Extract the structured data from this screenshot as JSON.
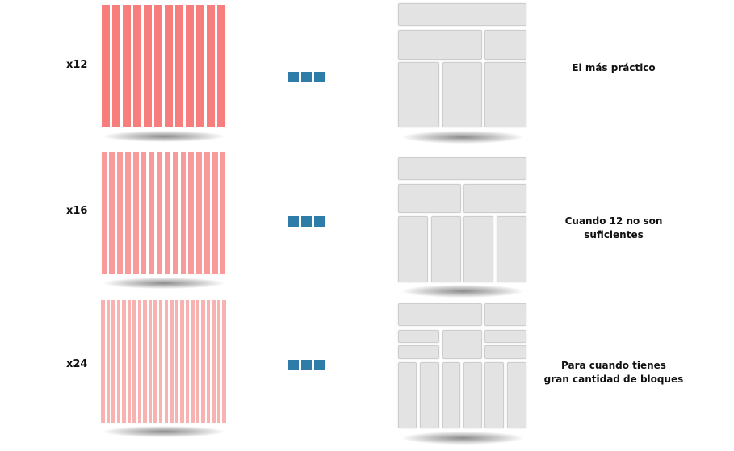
{
  "rows": [
    {
      "label": "x12",
      "columns": 12,
      "color": "#f87e7e",
      "description_lines": [
        "El más práctico"
      ]
    },
    {
      "label": "x16",
      "columns": 16,
      "color": "#f99a9a",
      "description_lines": [
        "Cuando 12 no son",
        "suficientes"
      ]
    },
    {
      "label": "x24",
      "columns": 24,
      "color": "#f9b2b2",
      "description_lines": [
        "Para cuando tienes",
        "gran cantidad de bloques"
      ]
    }
  ],
  "colors": {
    "dots": "#2e7ca8",
    "block_fill": "#e3e3e3",
    "block_border": "#cdcdcd"
  }
}
